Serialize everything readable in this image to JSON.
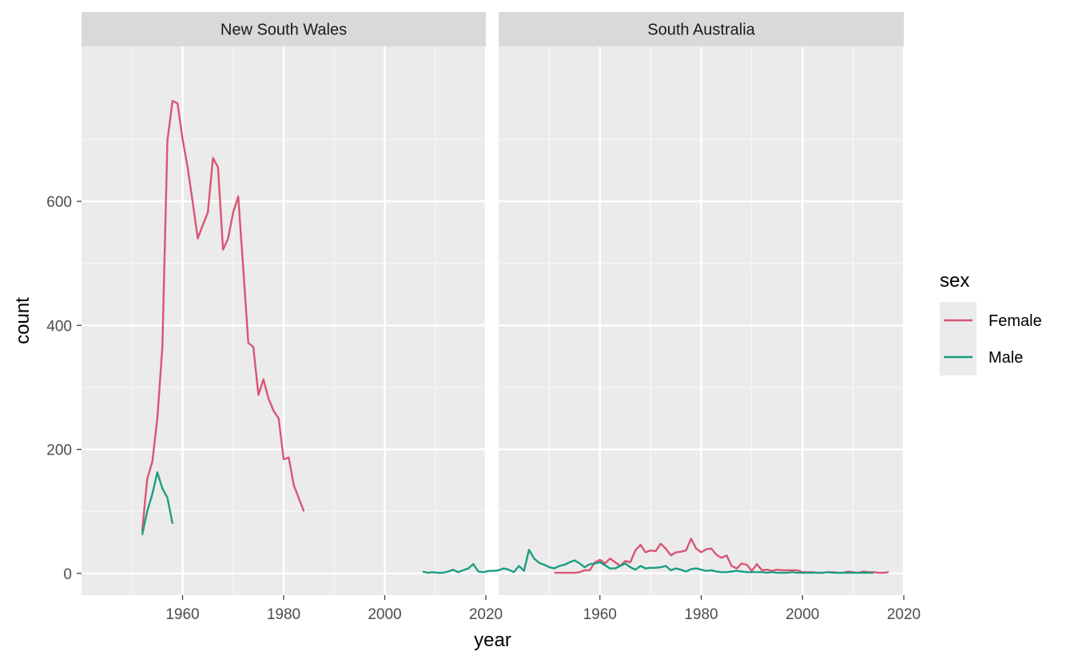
{
  "chart_data": {
    "type": "line",
    "xlabel": "year",
    "ylabel": "count",
    "xlim": [
      1940,
      2020
    ],
    "ylim": [
      -35,
      850
    ],
    "x_ticks": [
      1960,
      1980,
      2000,
      2020
    ],
    "x_tick_labels": [
      "1960",
      "1980",
      "2000",
      "2020"
    ],
    "y_ticks": [
      0,
      200,
      400,
      600
    ],
    "y_tick_labels": [
      "0",
      "200",
      "400",
      "600"
    ],
    "grid": true,
    "legend": {
      "title": "sex",
      "placement": "right",
      "entries": [
        {
          "label": "Female",
          "color": "#d95575"
        },
        {
          "label": "Male",
          "color": "#1b9e82"
        }
      ]
    },
    "facets": [
      {
        "title": "New South Wales",
        "series": [
          {
            "name": "Female",
            "color": "#d95575",
            "x": [
              1952,
              1953,
              1954,
              1955,
              1956,
              1957,
              1958,
              1959,
              1960,
              1961,
              1962,
              1963,
              1964,
              1965,
              1966,
              1967,
              1968,
              1969,
              1970,
              1971,
              1972,
              1973,
              1974,
              1975,
              1976,
              1977,
              1978,
              1979,
              1980,
              1981,
              1982,
              1983,
              1984
            ],
            "y": [
              68,
              152,
              180,
              250,
              365,
              698,
              762,
              758,
              700,
              655,
              598,
              540,
              562,
              582,
              670,
              655,
              522,
              540,
              582,
              608,
              492,
              372,
              365,
              288,
              313,
              282,
              262,
              250,
              184,
              187,
              142,
              121,
              100
            ]
          },
          {
            "name": "Male",
            "color": "#1b9e82",
            "x": [
              1952,
              1953,
              1954,
              1955,
              1956,
              1957,
              1958
            ],
            "y": [
              62,
              100,
              128,
              163,
              137,
              122,
              80
            ]
          }
        ]
      },
      {
        "title": "South Australia",
        "series": [
          {
            "name": "Female",
            "color": "#d95575",
            "x": [
              1951,
              1952,
              1953,
              1954,
              1955,
              1956,
              1957,
              1958,
              1959,
              1960,
              1961,
              1962,
              1963,
              1964,
              1965,
              1966,
              1967,
              1968,
              1969,
              1970,
              1971,
              1972,
              1973,
              1974,
              1975,
              1976,
              1977,
              1978,
              1979,
              1980,
              1981,
              1982,
              1983,
              1984,
              1985,
              1986,
              1987,
              1988,
              1989,
              1990,
              1991,
              1992,
              1993,
              1994,
              1995,
              1996,
              1997,
              1998,
              1999,
              2000,
              2001,
              2002,
              2003,
              2004,
              2005,
              2006,
              2007,
              2008,
              2009,
              2010,
              2011,
              2012,
              2013,
              2014,
              2015,
              2016,
              2017
            ],
            "y": [
              1,
              1,
              1,
              1,
              1,
              2,
              5,
              5,
              18,
              22,
              16,
              24,
              18,
              12,
              20,
              18,
              37,
              46,
              34,
              37,
              36,
              48,
              40,
              29,
              34,
              35,
              37,
              56,
              40,
              34,
              39,
              40,
              30,
              25,
              29,
              12,
              8,
              16,
              14,
              4,
              15,
              5,
              6,
              4,
              6,
              5,
              5,
              5,
              5,
              2,
              2,
              2,
              1,
              1,
              2,
              2,
              1,
              1,
              3,
              2,
              1,
              3,
              2,
              2,
              1,
              1,
              2
            ]
          },
          {
            "name": "Male",
            "color": "#1b9e82",
            "x": [
              1925,
              1926,
              1927,
              1928,
              1929,
              1930,
              1931,
              1932,
              1933,
              1934,
              1935,
              1936,
              1937,
              1938,
              1939,
              1940,
              1941,
              1942,
              1943,
              1944,
              1945,
              1946,
              1947,
              1948,
              1949,
              1950,
              1951,
              1952,
              1953,
              1954,
              1955,
              1956,
              1957,
              1958,
              1959,
              1960,
              1961,
              1962,
              1963,
              1964,
              1965,
              1966,
              1967,
              1968,
              1969,
              1970,
              1971,
              1972,
              1973,
              1974,
              1975,
              1976,
              1977,
              1978,
              1979,
              1980,
              1981,
              1982,
              1983,
              1984,
              1985,
              1986,
              1987,
              1988,
              1989,
              1990,
              1991,
              1992,
              1993,
              1994,
              1995,
              1996,
              1997,
              1998,
              1999,
              2000,
              2001,
              2002,
              2003,
              2004,
              2005,
              2006,
              2007,
              2008,
              2009,
              2010,
              2011,
              2012,
              2013,
              2014
            ],
            "y": [
              3,
              1,
              2,
              1,
              1,
              3,
              6,
              2,
              5,
              8,
              15,
              3,
              2,
              4,
              4,
              5,
              8,
              6,
              2,
              12,
              4,
              38,
              24,
              17,
              14,
              10,
              8,
              12,
              14,
              18,
              21,
              16,
              10,
              15,
              16,
              18,
              13,
              8,
              8,
              12,
              16,
              10,
              6,
              12,
              8,
              9,
              9,
              10,
              12,
              5,
              8,
              6,
              3,
              7,
              8,
              6,
              4,
              5,
              3,
              2,
              2,
              3,
              4,
              3,
              2,
              2,
              2,
              2,
              1,
              2,
              1,
              1,
              1,
              2,
              1,
              1,
              1,
              1,
              1,
              1,
              2,
              1,
              1,
              1,
              1,
              1,
              1,
              1,
              1,
              1
            ]
          }
        ]
      }
    ]
  }
}
